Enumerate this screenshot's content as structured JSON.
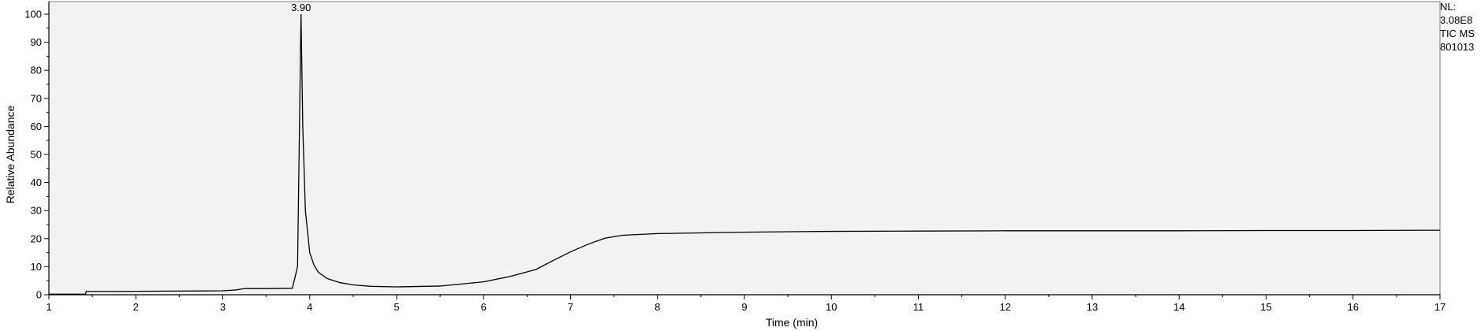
{
  "chart_data": {
    "type": "line",
    "xlabel": "Time (min)",
    "ylabel": "Relative Abundance",
    "xlim": [
      1,
      17
    ],
    "ylim": [
      0,
      100
    ],
    "xticks": [
      1,
      2,
      3,
      4,
      5,
      6,
      7,
      8,
      9,
      10,
      11,
      12,
      13,
      14,
      15,
      16,
      17
    ],
    "yticks": [
      0,
      10,
      20,
      30,
      40,
      50,
      60,
      70,
      80,
      90,
      100
    ],
    "grid": false,
    "peak_labels": [
      {
        "x": 3.9,
        "y": 100,
        "text": "3.90"
      }
    ],
    "series": [
      {
        "x": [
          1.0,
          1.3,
          1.42,
          1.43,
          1.8,
          2.4,
          3.0,
          3.15,
          3.25,
          3.5,
          3.8,
          3.86,
          3.88,
          3.9,
          3.92,
          3.95,
          4.0,
          4.05,
          4.1,
          4.2,
          4.35,
          4.5,
          4.7,
          5.0,
          5.5,
          6.0,
          6.3,
          6.6,
          6.8,
          7.0,
          7.2,
          7.4,
          7.6,
          8.0,
          9.0,
          10.0,
          11.0,
          12.0,
          13.0,
          14.0,
          15.0,
          16.0,
          17.0
        ],
        "y": [
          0.2,
          0.2,
          0.2,
          1.2,
          1.2,
          1.3,
          1.4,
          1.7,
          2.2,
          2.2,
          2.3,
          10.0,
          55.0,
          100.0,
          60.0,
          30.0,
          15.0,
          10.5,
          8.0,
          5.8,
          4.3,
          3.5,
          3.0,
          2.8,
          3.1,
          4.6,
          6.5,
          9.0,
          12.2,
          15.3,
          18.0,
          20.2,
          21.2,
          21.8,
          22.3,
          22.6,
          22.7,
          22.8,
          22.8,
          22.8,
          22.9,
          22.9,
          23.0
        ]
      }
    ]
  },
  "info": {
    "lines": [
      "NL:",
      "3.08E8",
      "TIC  MS",
      "801013"
    ]
  },
  "colors": {
    "plot_background": "#f2f2f2",
    "line": "#000000",
    "axis": "#000000"
  }
}
